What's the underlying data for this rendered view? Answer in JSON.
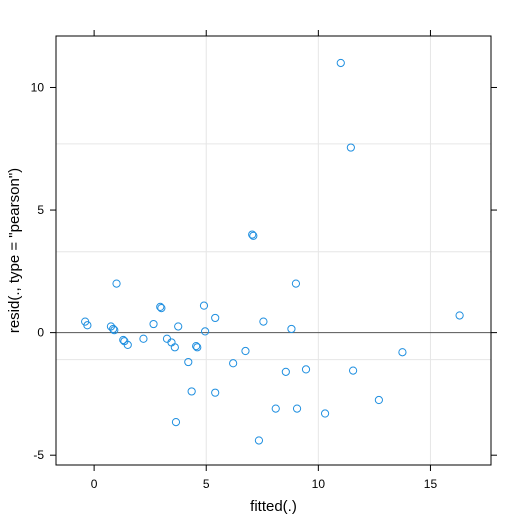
{
  "chart_data": {
    "type": "scatter",
    "title": "",
    "xlabel": "fitted(.)",
    "ylabel": "resid(., type = \"pearson\")",
    "xlim": [
      -1.7,
      17.7
    ],
    "ylim": [
      -5.4,
      12.1
    ],
    "x_ticks": [
      0,
      5,
      10,
      15
    ],
    "y_ticks": [
      -5,
      0,
      5,
      10
    ],
    "grid": true,
    "grid_x": [
      5,
      10,
      15
    ],
    "grid_y": [
      -1.1,
      3.3,
      7.7
    ],
    "reference_line_y": 0,
    "point_color": "#1f8fe0",
    "points": [
      {
        "x": -0.4,
        "y": 0.45
      },
      {
        "x": -0.3,
        "y": 0.3
      },
      {
        "x": 0.75,
        "y": 0.25
      },
      {
        "x": 0.85,
        "y": 0.15
      },
      {
        "x": 0.9,
        "y": 0.1
      },
      {
        "x": 1.0,
        "y": 2.0
      },
      {
        "x": 1.3,
        "y": -0.3
      },
      {
        "x": 1.35,
        "y": -0.35
      },
      {
        "x": 1.5,
        "y": -0.5
      },
      {
        "x": 2.2,
        "y": -0.25
      },
      {
        "x": 2.65,
        "y": 0.35
      },
      {
        "x": 2.95,
        "y": 1.05
      },
      {
        "x": 3.0,
        "y": 1.0
      },
      {
        "x": 3.25,
        "y": -0.25
      },
      {
        "x": 3.45,
        "y": -0.4
      },
      {
        "x": 3.6,
        "y": -0.6
      },
      {
        "x": 3.65,
        "y": -3.65
      },
      {
        "x": 3.75,
        "y": 0.25
      },
      {
        "x": 4.2,
        "y": -1.2
      },
      {
        "x": 4.35,
        "y": -2.4
      },
      {
        "x": 4.55,
        "y": -0.55
      },
      {
        "x": 4.6,
        "y": -0.6
      },
      {
        "x": 4.9,
        "y": 1.1
      },
      {
        "x": 4.95,
        "y": 0.05
      },
      {
        "x": 5.4,
        "y": 0.6
      },
      {
        "x": 5.4,
        "y": -2.45
      },
      {
        "x": 6.2,
        "y": -1.25
      },
      {
        "x": 6.75,
        "y": -0.75
      },
      {
        "x": 7.05,
        "y": 4.0
      },
      {
        "x": 7.1,
        "y": 3.95
      },
      {
        "x": 7.35,
        "y": -4.4
      },
      {
        "x": 7.55,
        "y": 0.45
      },
      {
        "x": 8.1,
        "y": -3.1
      },
      {
        "x": 8.55,
        "y": -1.6
      },
      {
        "x": 8.8,
        "y": 0.15
      },
      {
        "x": 9.0,
        "y": 2.0
      },
      {
        "x": 9.05,
        "y": -3.1
      },
      {
        "x": 9.45,
        "y": -1.5
      },
      {
        "x": 10.3,
        "y": -3.3
      },
      {
        "x": 11.0,
        "y": 11.0
      },
      {
        "x": 11.45,
        "y": 7.55
      },
      {
        "x": 11.55,
        "y": -1.55
      },
      {
        "x": 12.7,
        "y": -2.75
      },
      {
        "x": 13.75,
        "y": -0.8
      },
      {
        "x": 16.3,
        "y": 0.7
      }
    ]
  }
}
